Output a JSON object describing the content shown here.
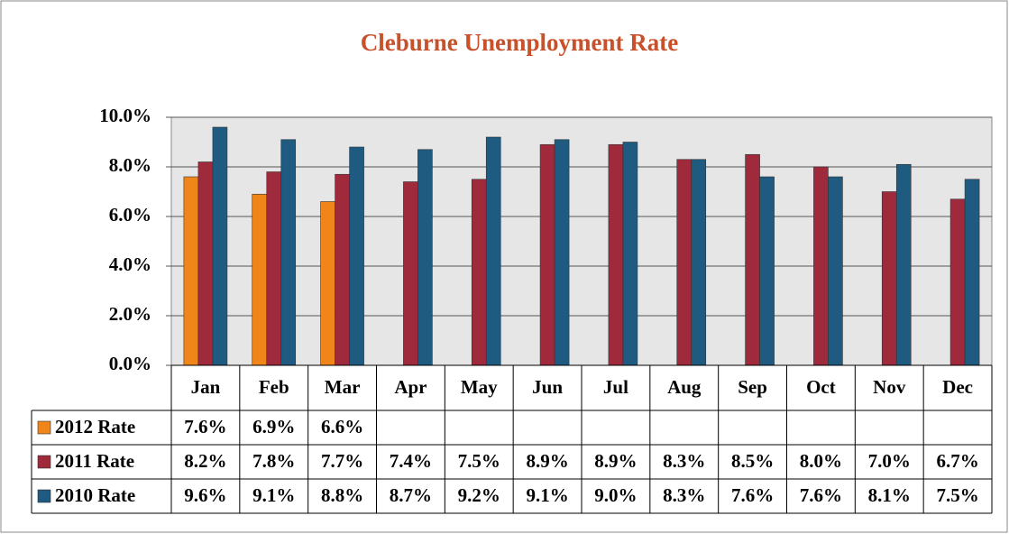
{
  "chart_data": {
    "type": "bar",
    "title": "Cleburne Unemployment Rate",
    "categories": [
      "Jan",
      "Feb",
      "Mar",
      "Apr",
      "May",
      "Jun",
      "Jul",
      "Aug",
      "Sep",
      "Oct",
      "Nov",
      "Dec"
    ],
    "series": [
      {
        "name": "2012 Rate",
        "color": "#f0861a",
        "values": [
          7.6,
          6.9,
          6.6,
          null,
          null,
          null,
          null,
          null,
          null,
          null,
          null,
          null
        ],
        "value_labels": [
          "7.6%",
          "6.9%",
          "6.6%",
          null,
          null,
          null,
          null,
          null,
          null,
          null,
          null,
          null
        ]
      },
      {
        "name": "2011 Rate",
        "color": "#9e2a3c",
        "values": [
          8.2,
          7.8,
          7.7,
          7.4,
          7.5,
          8.9,
          8.9,
          8.3,
          8.5,
          8.0,
          7.0,
          6.7
        ],
        "value_labels": [
          "8.2%",
          "7.8%",
          "7.7%",
          "7.4%",
          "7.5%",
          "8.9%",
          "8.9%",
          "8.3%",
          "8.5%",
          "8.0%",
          "7.0%",
          "6.7%"
        ]
      },
      {
        "name": "2010 Rate",
        "color": "#1f5a80",
        "values": [
          9.6,
          9.1,
          8.8,
          8.7,
          9.2,
          9.1,
          9.0,
          8.3,
          7.6,
          7.6,
          8.1,
          7.5
        ],
        "value_labels": [
          "9.6%",
          "9.1%",
          "8.8%",
          "8.7%",
          "9.2%",
          "9.1%",
          "9.0%",
          "8.3%",
          "7.6%",
          "7.6%",
          "8.1%",
          "7.5%"
        ]
      }
    ],
    "ylim": [
      0,
      10
    ],
    "yticks": [
      {
        "value": 0,
        "label": "0.0%"
      },
      {
        "value": 2,
        "label": "2.0%"
      },
      {
        "value": 4,
        "label": "4.0%"
      },
      {
        "value": 6,
        "label": "6.0%"
      },
      {
        "value": 8,
        "label": "8.0%"
      },
      {
        "value": 10,
        "label": "10.0%"
      }
    ],
    "grid": true
  }
}
